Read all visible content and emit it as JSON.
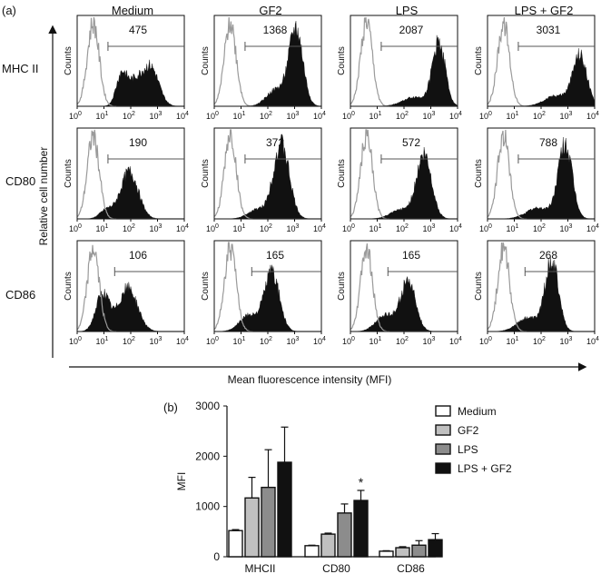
{
  "panel_a": {
    "label": "(a)",
    "y_axis_title": "Relative cell number",
    "x_axis_title": "Mean fluorescence intensity (MFI)",
    "columns": [
      "Medium",
      "GF2",
      "LPS",
      "LPS + GF2"
    ],
    "rows": [
      "MHC II",
      "CD80",
      "CD86"
    ],
    "histogram_ylabel": "Counts",
    "x_tick_base": "10",
    "x_tick_exponents": [
      "0",
      "1",
      "2",
      "3",
      "4"
    ]
  },
  "panel_b": {
    "label": "(b)"
  },
  "chart_data": [
    {
      "type": "area",
      "subtype": "histogram-grid",
      "xscale": "log",
      "xlim": [
        1,
        10000
      ],
      "xlabel": "Mean fluorescence intensity (MFI)",
      "ylabel": "Relative cell number",
      "rows": [
        "MHC II",
        "CD80",
        "CD86"
      ],
      "columns": [
        "Medium",
        "GF2",
        "LPS",
        "LPS + GF2"
      ],
      "mfi_values": [
        [
          "475",
          "1368",
          "2087",
          "3031"
        ],
        [
          "190",
          "372",
          "572",
          "788"
        ],
        [
          "106",
          "165",
          "165",
          "268"
        ]
      ],
      "control_peak_log": 0.6,
      "stained_profiles": [
        [
          {
            "peaks": [
              [
                1.65,
                0.2,
                0.33
              ],
              [
                2.75,
                0.3,
                0.42
              ],
              [
                2.15,
                0.28,
                0.25
              ]
            ]
          },
          {
            "peaks": [
              [
                3.05,
                0.26,
                0.85
              ],
              [
                2.3,
                0.35,
                0.18
              ]
            ]
          },
          {
            "peaks": [
              [
                3.3,
                0.24,
                0.7
              ],
              [
                2.4,
                0.45,
                0.1
              ]
            ]
          },
          {
            "peaks": [
              [
                3.45,
                0.26,
                0.55
              ],
              [
                2.6,
                0.45,
                0.12
              ]
            ]
          }
        ],
        [
          {
            "peaks": [
              [
                1.95,
                0.33,
                0.52
              ],
              [
                1.1,
                0.25,
                0.1
              ]
            ]
          },
          {
            "peaks": [
              [
                2.5,
                0.3,
                0.82
              ],
              [
                1.6,
                0.35,
                0.1
              ]
            ]
          },
          {
            "peaks": [
              [
                2.75,
                0.28,
                0.7
              ],
              [
                1.9,
                0.4,
                0.1
              ]
            ]
          },
          {
            "peaks": [
              [
                2.9,
                0.26,
                0.82
              ],
              [
                1.9,
                0.45,
                0.12
              ]
            ]
          }
        ],
        [
          {
            "peaks": [
              [
                0.95,
                0.25,
                0.42
              ],
              [
                1.9,
                0.35,
                0.48
              ]
            ]
          },
          {
            "peaks": [
              [
                2.15,
                0.28,
                0.65
              ],
              [
                1.3,
                0.35,
                0.18
              ]
            ]
          },
          {
            "peaks": [
              [
                2.15,
                0.28,
                0.55
              ],
              [
                1.3,
                0.35,
                0.18
              ]
            ]
          },
          {
            "peaks": [
              [
                2.4,
                0.25,
                0.78
              ],
              [
                1.5,
                0.4,
                0.15
              ]
            ]
          }
        ]
      ]
    },
    {
      "type": "bar",
      "categories": [
        "MHCII",
        "CD80",
        "CD86"
      ],
      "series": [
        {
          "name": "Medium",
          "values": [
            520,
            220,
            110
          ],
          "errors": [
            20,
            10,
            10
          ],
          "color": "#ffffff"
        },
        {
          "name": "GF2",
          "values": [
            1170,
            450,
            180
          ],
          "errors": [
            410,
            20,
            20
          ],
          "color": "#c0c0c0"
        },
        {
          "name": "LPS",
          "values": [
            1380,
            870,
            230
          ],
          "errors": [
            750,
            180,
            90
          ],
          "color": "#8c8c8c"
        },
        {
          "name": "LPS + GF2",
          "values": [
            1880,
            1120,
            340
          ],
          "errors": [
            700,
            200,
            120
          ],
          "color": "#111111"
        }
      ],
      "ylabel": "MFI",
      "ylim": [
        0,
        3000
      ],
      "yticks": [
        "0",
        "1000",
        "2000",
        "3000"
      ],
      "annotations": [
        {
          "category": "CD80",
          "series": "LPS + GF2",
          "text": "*"
        }
      ],
      "legend_position": "right"
    }
  ]
}
